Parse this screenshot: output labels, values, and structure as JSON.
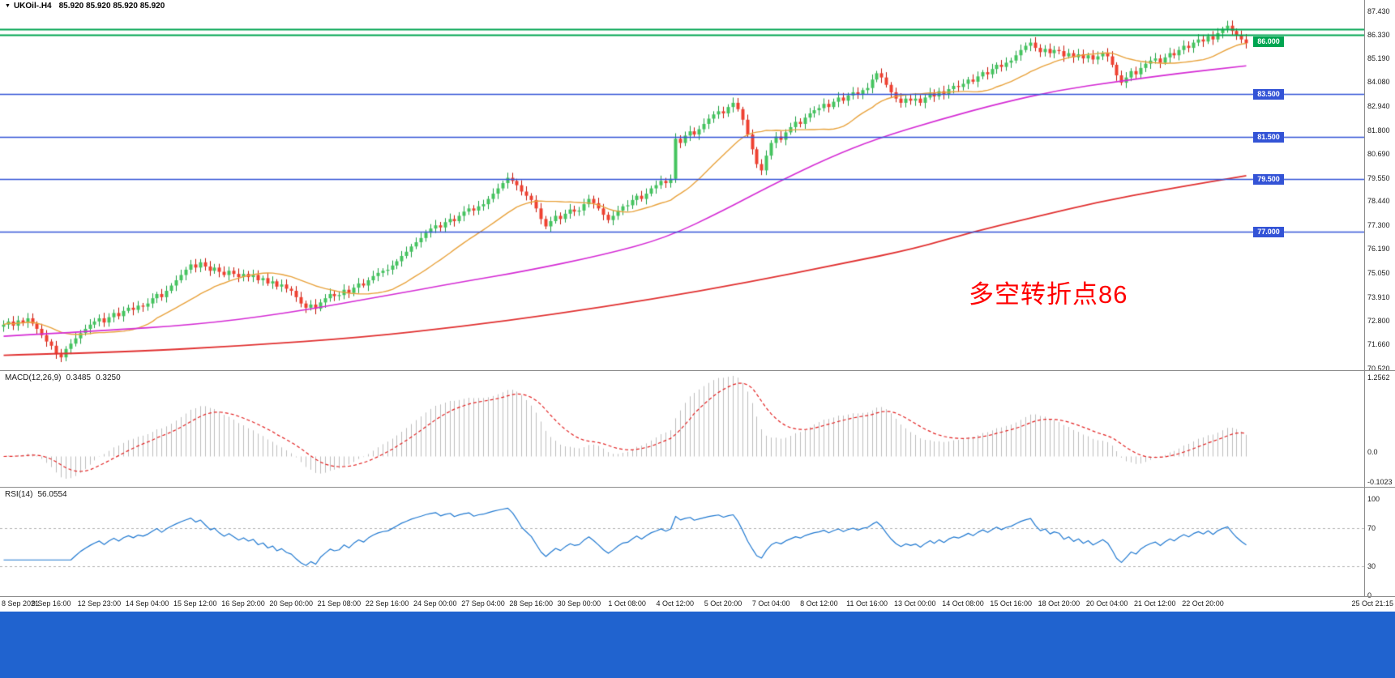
{
  "icons": {
    "symbol_dropdown": "▼"
  },
  "footer": {
    "color": "#2063cf"
  },
  "chart_data": [
    {
      "type": "candlestick",
      "symbol": "UKOil-",
      "timeframe": "H4",
      "title_display": "UKOil-.H4",
      "ohlc_display": "85.920 85.920 85.920 85.920",
      "y_ticks": [
        "87.430",
        "86.330",
        "85.190",
        "84.080",
        "82.940",
        "81.800",
        "80.690",
        "79.550",
        "78.440",
        "77.300",
        "76.190",
        "75.050",
        "73.910",
        "72.800",
        "71.660",
        "70.520"
      ],
      "x_labels": [
        "8 Sep 2021",
        "9 Sep 16:00",
        "12 Sep 23:00",
        "14 Sep 04:00",
        "15 Sep 12:00",
        "16 Sep 20:00",
        "20 Sep 00:00",
        "21 Sep 08:00",
        "22 Sep 16:00",
        "24 Sep 00:00",
        "27 Sep 04:00",
        "28 Sep 16:00",
        "30 Sep 00:00",
        "1 Oct 08:00",
        "4 Oct 12:00",
        "5 Oct 20:00",
        "7 Oct 04:00",
        "8 Oct 12:00",
        "11 Oct 16:00",
        "13 Oct 00:00",
        "14 Oct 08:00",
        "15 Oct 16:00",
        "18 Oct 20:00",
        "20 Oct 04:00",
        "21 Oct 12:00",
        "22 Oct 20:00",
        "25 Oct 21:15"
      ],
      "open_first": 72.5,
      "closes": [
        72.6,
        72.75,
        72.55,
        72.8,
        72.7,
        72.9,
        72.65,
        72.4,
        72.1,
        71.8,
        71.6,
        71.2,
        71.05,
        71.45,
        71.7,
        71.95,
        72.2,
        72.4,
        72.6,
        72.75,
        72.9,
        72.7,
        72.95,
        73.15,
        73.0,
        73.25,
        73.4,
        73.3,
        73.5,
        73.45,
        73.6,
        73.85,
        74.05,
        73.9,
        74.2,
        74.45,
        74.7,
        74.95,
        75.2,
        75.45,
        75.3,
        75.55,
        75.35,
        75.15,
        75.3,
        75.1,
        74.95,
        75.15,
        75.0,
        74.85,
        75.0,
        74.85,
        74.95,
        74.7,
        74.8,
        74.55,
        74.65,
        74.4,
        74.5,
        74.3,
        74.2,
        73.9,
        73.6,
        73.4,
        73.55,
        73.35,
        73.65,
        73.85,
        74.05,
        73.95,
        74.0,
        74.25,
        74.1,
        74.35,
        74.55,
        74.45,
        74.7,
        74.9,
        75.05,
        75.15,
        75.2,
        75.4,
        75.6,
        75.85,
        76.05,
        76.3,
        76.5,
        76.7,
        76.95,
        77.15,
        77.3,
        77.2,
        77.45,
        77.6,
        77.5,
        77.75,
        77.95,
        78.1,
        78.0,
        78.2,
        78.3,
        78.55,
        78.8,
        79.05,
        79.3,
        79.55,
        79.4,
        79.2,
        78.9,
        78.7,
        78.5,
        78.1,
        77.6,
        77.25,
        77.5,
        77.75,
        77.6,
        77.85,
        78.05,
        77.95,
        78.0,
        78.3,
        78.55,
        78.35,
        78.1,
        77.8,
        77.55,
        77.75,
        78.0,
        78.2,
        78.25,
        78.5,
        78.7,
        78.55,
        78.8,
        79.05,
        79.2,
        79.4,
        79.3,
        79.5,
        81.4,
        81.2,
        81.55,
        81.75,
        81.6,
        81.85,
        82.1,
        82.35,
        82.55,
        82.7,
        82.6,
        82.9,
        83.1,
        82.8,
        82.3,
        81.6,
        80.9,
        80.2,
        79.9,
        80.6,
        81.2,
        81.5,
        81.35,
        81.7,
        81.95,
        82.2,
        82.1,
        82.4,
        82.6,
        82.75,
        82.85,
        83.05,
        82.9,
        83.15,
        83.35,
        83.2,
        83.45,
        83.6,
        83.5,
        83.7,
        83.8,
        84.2,
        84.5,
        84.3,
        83.95,
        83.6,
        83.3,
        83.1,
        83.3,
        83.2,
        83.3,
        83.1,
        83.35,
        83.55,
        83.4,
        83.65,
        83.5,
        83.75,
        83.9,
        83.85,
        84.0,
        84.2,
        84.1,
        84.35,
        84.55,
        84.45,
        84.7,
        84.9,
        84.8,
        85.0,
        85.1,
        85.35,
        85.6,
        85.8,
        85.95,
        85.7,
        85.5,
        85.65,
        85.45,
        85.6,
        85.55,
        85.3,
        85.45,
        85.25,
        85.4,
        85.2,
        85.35,
        85.15,
        85.3,
        85.45,
        85.3,
        84.9,
        84.4,
        84.05,
        84.3,
        84.6,
        84.45,
        84.75,
        84.95,
        85.1,
        85.2,
        85.0,
        85.25,
        85.45,
        85.35,
        85.6,
        85.8,
        85.7,
        85.95,
        86.1,
        86.0,
        86.25,
        86.1,
        86.4,
        86.6,
        86.75,
        86.5,
        86.3,
        86.1,
        85.92
      ],
      "horizontal_lines": {
        "blue": [
          83.5,
          81.5,
          79.5,
          77.0
        ],
        "blue_color": "#3353d6",
        "green": [
          86.6,
          86.33
        ],
        "green_color": "#00a551"
      },
      "price_tags": [
        {
          "label": "86.000",
          "price": 86.0,
          "color": "#00a551"
        },
        {
          "label": "83.500",
          "price": 83.5,
          "color": "#3353d6"
        },
        {
          "label": "81.500",
          "price": 81.5,
          "color": "#3353d6"
        },
        {
          "label": "79.500",
          "price": 79.5,
          "color": "#3353d6"
        },
        {
          "label": "77.000",
          "price": 77.0,
          "color": "#3353d6"
        }
      ],
      "moving_averages": [
        {
          "name": "fast",
          "method": "sma",
          "period": 20,
          "color": "#e8a23c"
        },
        {
          "name": "mid",
          "color": "#d42bd4",
          "points": [
            [
              0,
              72.05
            ],
            [
              20,
              72.3
            ],
            [
              40,
              72.6
            ],
            [
              58,
              73.1
            ],
            [
              78,
              73.9
            ],
            [
              95,
              74.6
            ],
            [
              108,
              75.1
            ],
            [
              125,
              75.9
            ],
            [
              138,
              76.7
            ],
            [
              150,
              78.0
            ],
            [
              160,
              79.2
            ],
            [
              172,
              80.5
            ],
            [
              182,
              81.4
            ],
            [
              195,
              82.3
            ],
            [
              208,
              83.1
            ],
            [
              220,
              83.7
            ],
            [
              232,
              84.1
            ],
            [
              245,
              84.5
            ],
            [
              259,
              84.85
            ]
          ]
        },
        {
          "name": "slow",
          "color": "#e03030",
          "points": [
            [
              0,
              71.15
            ],
            [
              25,
              71.3
            ],
            [
              50,
              71.6
            ],
            [
              75,
              72.0
            ],
            [
              95,
              72.5
            ],
            [
              115,
              73.1
            ],
            [
              135,
              73.8
            ],
            [
              155,
              74.6
            ],
            [
              175,
              75.5
            ],
            [
              190,
              76.2
            ],
            [
              202,
              77.0
            ],
            [
              215,
              77.7
            ],
            [
              228,
              78.4
            ],
            [
              242,
              79.0
            ],
            [
              259,
              79.65
            ]
          ]
        }
      ],
      "candle_colors": {
        "up_body": "#44c45e",
        "up_wick": "#1d9e41",
        "down_body": "#ef4030",
        "down_wick": "#c21407"
      },
      "annotation": {
        "text": "多空转折点86",
        "color": "#ff0000"
      }
    },
    {
      "type": "macd_histogram",
      "label": "MACD(12,26,9)",
      "value_main": "0.3485",
      "value_signal": "0.3250",
      "params": {
        "fast": 12,
        "slow": 26,
        "signal": 9
      },
      "y_ticks": [
        "1.2562",
        "0.0",
        "-0.1023"
      ],
      "histogram_color": "#bdbdbd",
      "signal_color": "#e22222",
      "derived_from": "chart_data.0.closes"
    },
    {
      "type": "line",
      "label": "RSI(14)",
      "value": "56.0554",
      "period": 14,
      "y_ticks": [
        "100",
        "70",
        "30",
        "0"
      ],
      "levels": [
        70,
        30
      ],
      "level_line_color": "#b0b0b0",
      "line_color": "#1f78d0",
      "derived_from": "chart_data.0.closes"
    }
  ]
}
